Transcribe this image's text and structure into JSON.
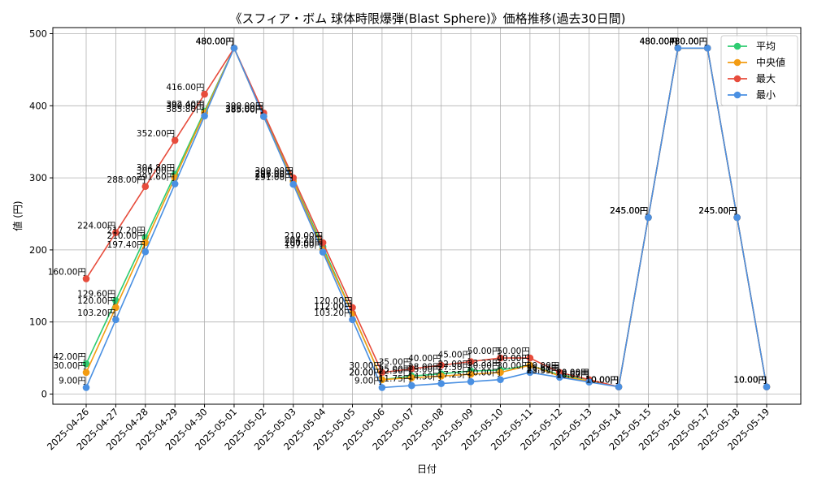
{
  "chart_data": {
    "type": "line",
    "title": "《スフィア・ボム 球体時限爆弾(Blast Sphere)》価格推移(過去30日間)",
    "xlabel": "日付",
    "ylabel": "値 (円)",
    "ylim": [
      0,
      500
    ],
    "yticks": [
      0,
      100,
      200,
      300,
      400,
      500
    ],
    "grid": true,
    "legend_position": "top-right",
    "value_suffix": "円",
    "categories": [
      "2025-04-26",
      "2025-04-27",
      "2025-04-28",
      "2025-04-29",
      "2025-04-30",
      "2025-05-01",
      "2025-05-02",
      "2025-05-03",
      "2025-05-04",
      "2025-05-05",
      "2025-05-06",
      "2025-05-07",
      "2025-05-08",
      "2025-05-09",
      "2025-05-10",
      "2025-05-11",
      "2025-05-12",
      "2025-05-13",
      "2025-05-14",
      "2025-05-15",
      "2025-05-16",
      "2025-05-17",
      "2025-05-18",
      "2025-05-19"
    ],
    "series": [
      {
        "name": "平均",
        "color": "#2ecc71",
        "values": [
          42.0,
          129.6,
          217.2,
          304.8,
          392.4,
          480.0,
          386.0,
          296.0,
          204.2,
          112.0,
          20.0,
          25.0,
          28.0,
          32.0,
          33.33,
          40.0,
          26.67,
          20.0,
          10.0,
          245.0,
          480.0,
          480.0,
          245.0,
          10.0
        ]
      },
      {
        "name": "中央値",
        "color": "#f39c12",
        "values": [
          30.0,
          120.0,
          210.0,
          300.0,
          390.0,
          480.0,
          385.0,
          295.0,
          200.0,
          112.0,
          20.0,
          22.5,
          25.0,
          27.5,
          30.0,
          40.0,
          25.0,
          18.0,
          10.0,
          245.0,
          480.0,
          480.0,
          245.0,
          10.0
        ]
      },
      {
        "name": "最大",
        "color": "#e74c3c",
        "values": [
          160.0,
          224.0,
          288.0,
          352.0,
          416.0,
          480.0,
          390.0,
          300.0,
          210.0,
          120.0,
          30.0,
          35.0,
          40.0,
          45.0,
          50.0,
          50.0,
          30.0,
          20.0,
          10.0,
          245.0,
          480.0,
          480.0,
          245.0,
          10.0
        ]
      },
      {
        "name": "最小",
        "color": "#4a90e2",
        "values": [
          9.0,
          103.2,
          197.4,
          291.6,
          385.8,
          480.0,
          385.0,
          291.0,
          197.0,
          103.2,
          9.0,
          11.75,
          14.5,
          17.25,
          20.0,
          30.0,
          23.33,
          16.67,
          10.0,
          245.0,
          480.0,
          480.0,
          245.0,
          10.0
        ]
      }
    ]
  }
}
